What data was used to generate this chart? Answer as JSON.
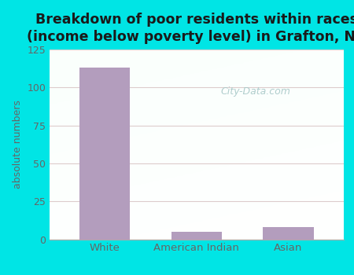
{
  "categories": [
    "White",
    "American Indian",
    "Asian"
  ],
  "values": [
    113,
    5,
    8
  ],
  "bar_color": "#b39dbd",
  "title": "Breakdown of poor residents within races\n(income below poverty level) in Grafton, NY",
  "ylabel": "absolute numbers",
  "ylim": [
    0,
    125
  ],
  "yticks": [
    0,
    25,
    50,
    75,
    100,
    125
  ],
  "title_fontsize": 12.5,
  "title_color": "#1a1a1a",
  "label_color": "#666666",
  "tick_color": "#666666",
  "outer_bg": "#00e5e5",
  "plot_bg": "#f0faf0",
  "watermark": "City-Data.com",
  "watermark_color": "#a8c8c8",
  "grid_color": "#ddcccc"
}
